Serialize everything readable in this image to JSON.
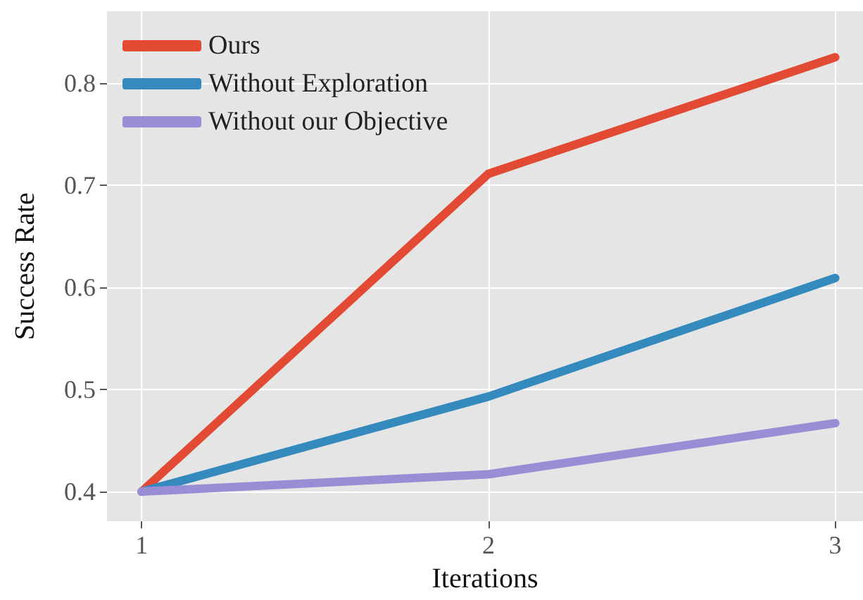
{
  "chart_data": {
    "type": "line",
    "xlabel": "Iterations",
    "ylabel": "Success Rate",
    "x": [
      1,
      2,
      3
    ],
    "series": [
      {
        "name": "Ours",
        "color": "#e24a33",
        "values": [
          0.4,
          0.711,
          0.825
        ]
      },
      {
        "name": "Without Exploration",
        "color": "#348abd",
        "values": [
          0.4,
          0.493,
          0.609
        ]
      },
      {
        "name": "Without our Objective",
        "color": "#988ed5",
        "values": [
          0.4,
          0.417,
          0.467
        ]
      }
    ],
    "xlim": [
      0.9,
      3.08
    ],
    "xticks": [
      1,
      2,
      3
    ],
    "ylim": [
      0.371,
      0.87
    ],
    "yticks": [
      0.4,
      0.5,
      0.6,
      0.7,
      0.8
    ],
    "grid": true,
    "legend": "top left",
    "marker": "none",
    "line_style": "solid"
  }
}
